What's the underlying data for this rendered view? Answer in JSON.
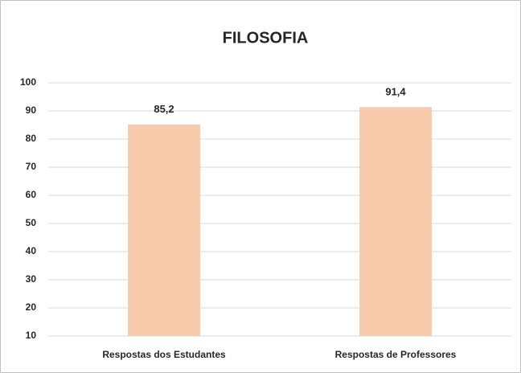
{
  "chart_data": {
    "type": "bar",
    "title": "FILOSOFIA",
    "categories": [
      "Respostas dos Estudantes",
      "Respostas de Professores"
    ],
    "values": [
      85.2,
      91.4
    ],
    "value_labels": [
      "85,2",
      "91,4"
    ],
    "color": "#f8cbad",
    "ylim": [
      10,
      100
    ],
    "yticks": [
      10,
      20,
      30,
      40,
      50,
      60,
      70,
      80,
      90,
      100
    ],
    "grid": true
  }
}
